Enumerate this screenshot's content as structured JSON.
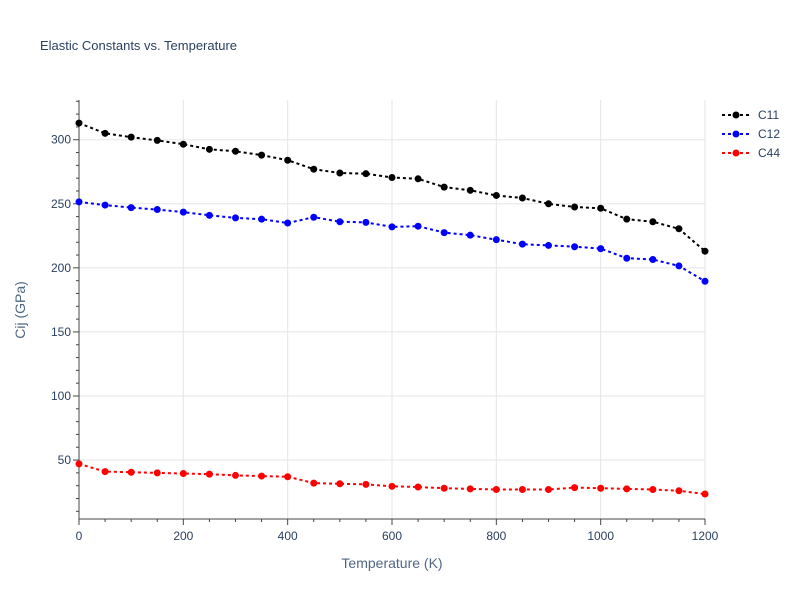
{
  "chart_data": {
    "type": "line",
    "title": "Elastic Constants vs. Temperature",
    "xlabel": "Temperature (K)",
    "ylabel": "Cij (GPa)",
    "xlim": [
      0,
      1200
    ],
    "ylim": [
      4,
      331
    ],
    "x_ticks": [
      0,
      200,
      400,
      600,
      800,
      1000,
      1200
    ],
    "y_ticks": [
      50,
      100,
      150,
      200,
      250,
      300
    ],
    "grid": true,
    "legend_position": "top-right",
    "x": [
      0,
      50,
      100,
      150,
      200,
      250,
      300,
      350,
      400,
      450,
      500,
      550,
      600,
      650,
      700,
      750,
      800,
      850,
      900,
      950,
      1000,
      1050,
      1100,
      1150,
      1200
    ],
    "series": [
      {
        "name": "C11",
        "color": "#000000",
        "values": [
          313,
          305,
          302,
          299.5,
          296.5,
          292.5,
          291,
          288,
          284,
          277,
          274,
          273.5,
          270.5,
          269.5,
          263,
          260.5,
          256.5,
          254.5,
          250,
          247.5,
          246.5,
          238,
          236,
          230.5,
          213
        ]
      },
      {
        "name": "C12",
        "color": "#0000ff",
        "values": [
          251.5,
          249,
          247,
          245.5,
          243.5,
          241,
          239,
          238,
          235,
          239.5,
          236,
          235.5,
          232,
          232.5,
          227.5,
          225.5,
          222,
          218.5,
          217.5,
          216.5,
          215,
          207.5,
          206.5,
          201.5,
          189.5
        ]
      },
      {
        "name": "C44",
        "color": "#ff0000",
        "values": [
          47,
          41,
          40.5,
          40,
          39.5,
          39,
          38,
          37.5,
          37,
          32,
          31.5,
          31,
          29.5,
          29,
          28,
          27.5,
          27,
          27,
          27,
          28.5,
          28,
          27.5,
          27,
          26,
          23.5
        ]
      }
    ]
  }
}
